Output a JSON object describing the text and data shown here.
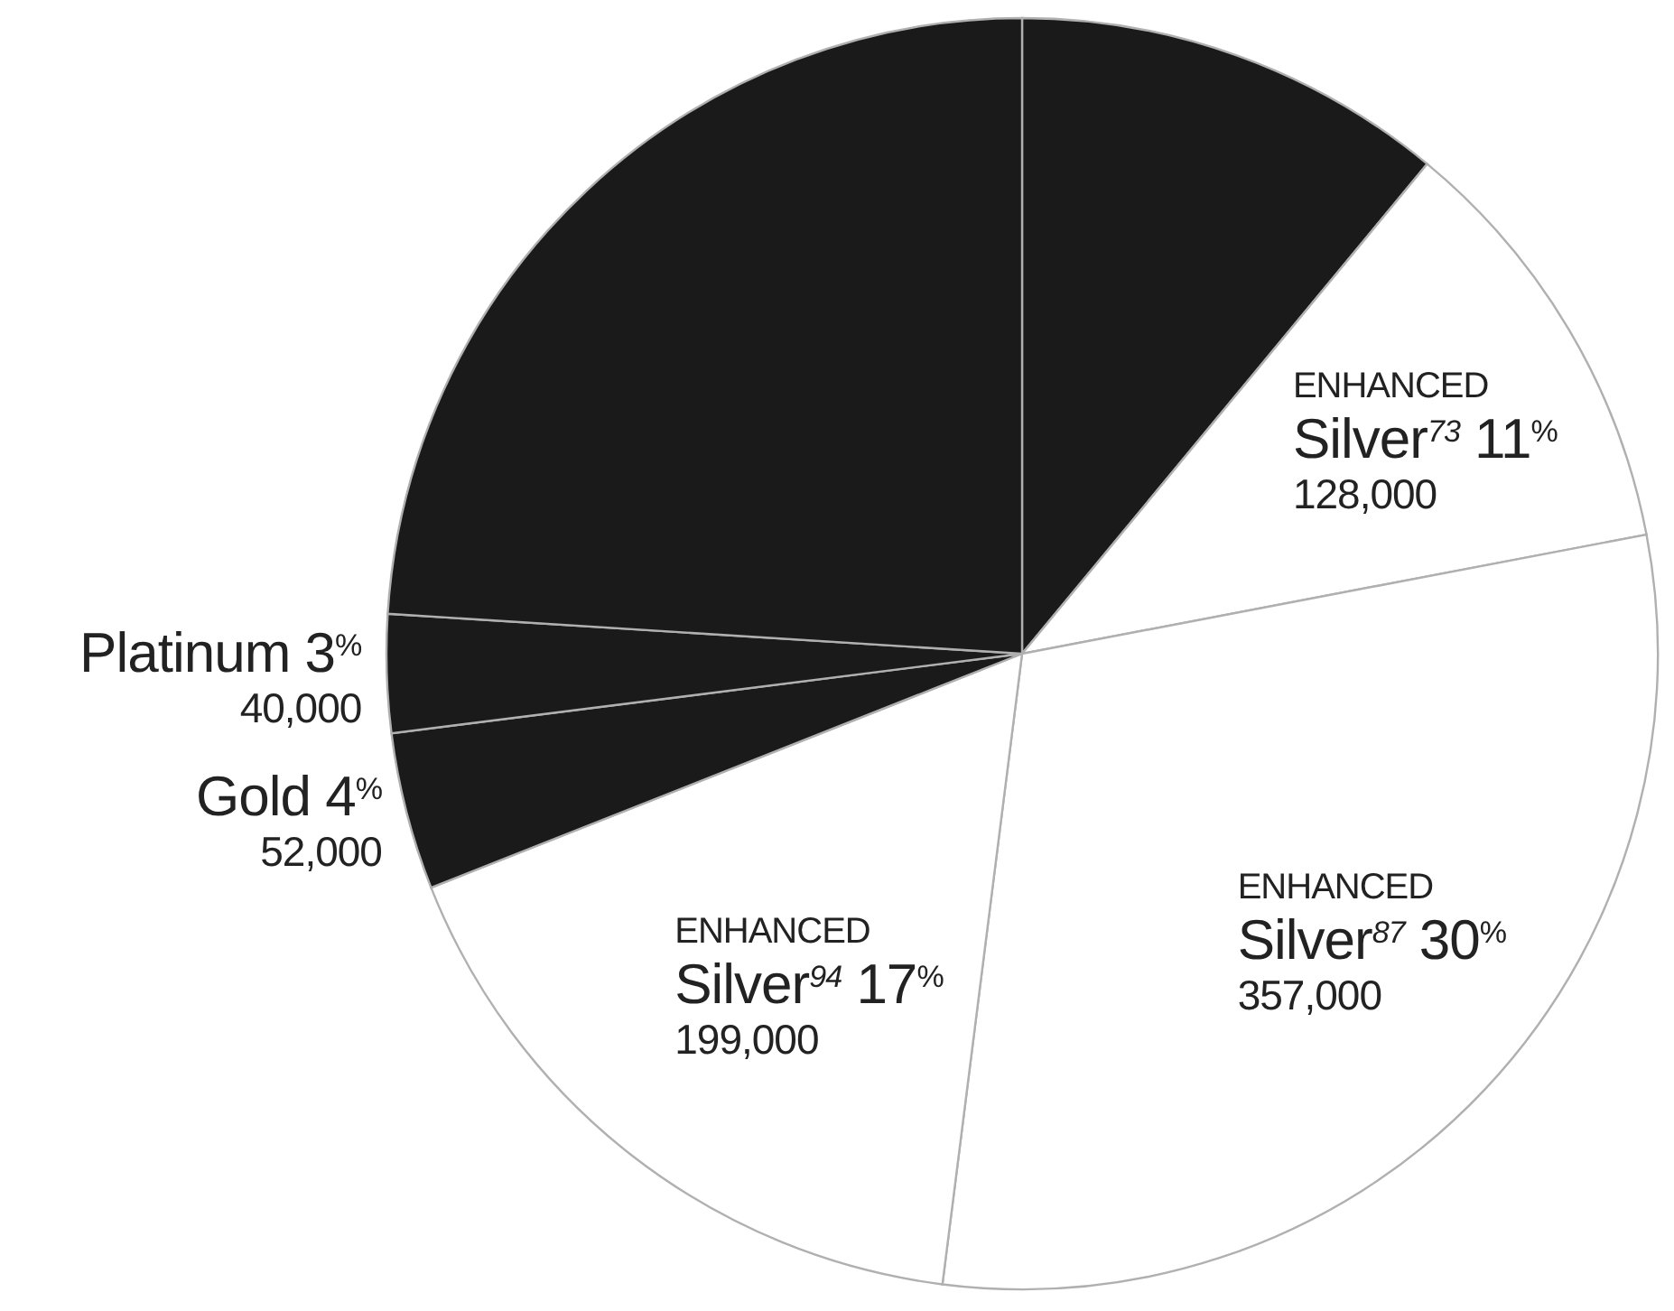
{
  "chart_data": {
    "type": "pie",
    "categories": [
      null,
      "ENHANCED\nSilver$^{73}$",
      "ENHANCED\nSilver$^{87}$",
      "ENHANCED\nSilver$^{94}$",
      "Gold",
      "Platinum",
      null
    ],
    "values": [
      11,
      11,
      30,
      17,
      4,
      3,
      24
    ],
    "colors": [
      "#1a1a1a",
      "#ffffff",
      "#ffffff",
      "#ffffff",
      "#1a1a1a",
      "#1a1a1a",
      "#1a1a1a"
    ],
    "value_labels": [
      null,
      "11$^{%}$\n128,000",
      "30$^{%}$\n357,000",
      "17$^{%}$\n199,000",
      "4$^{%}$\n52,000",
      "3$^{%}$\n40,000",
      null
    ]
  }
}
